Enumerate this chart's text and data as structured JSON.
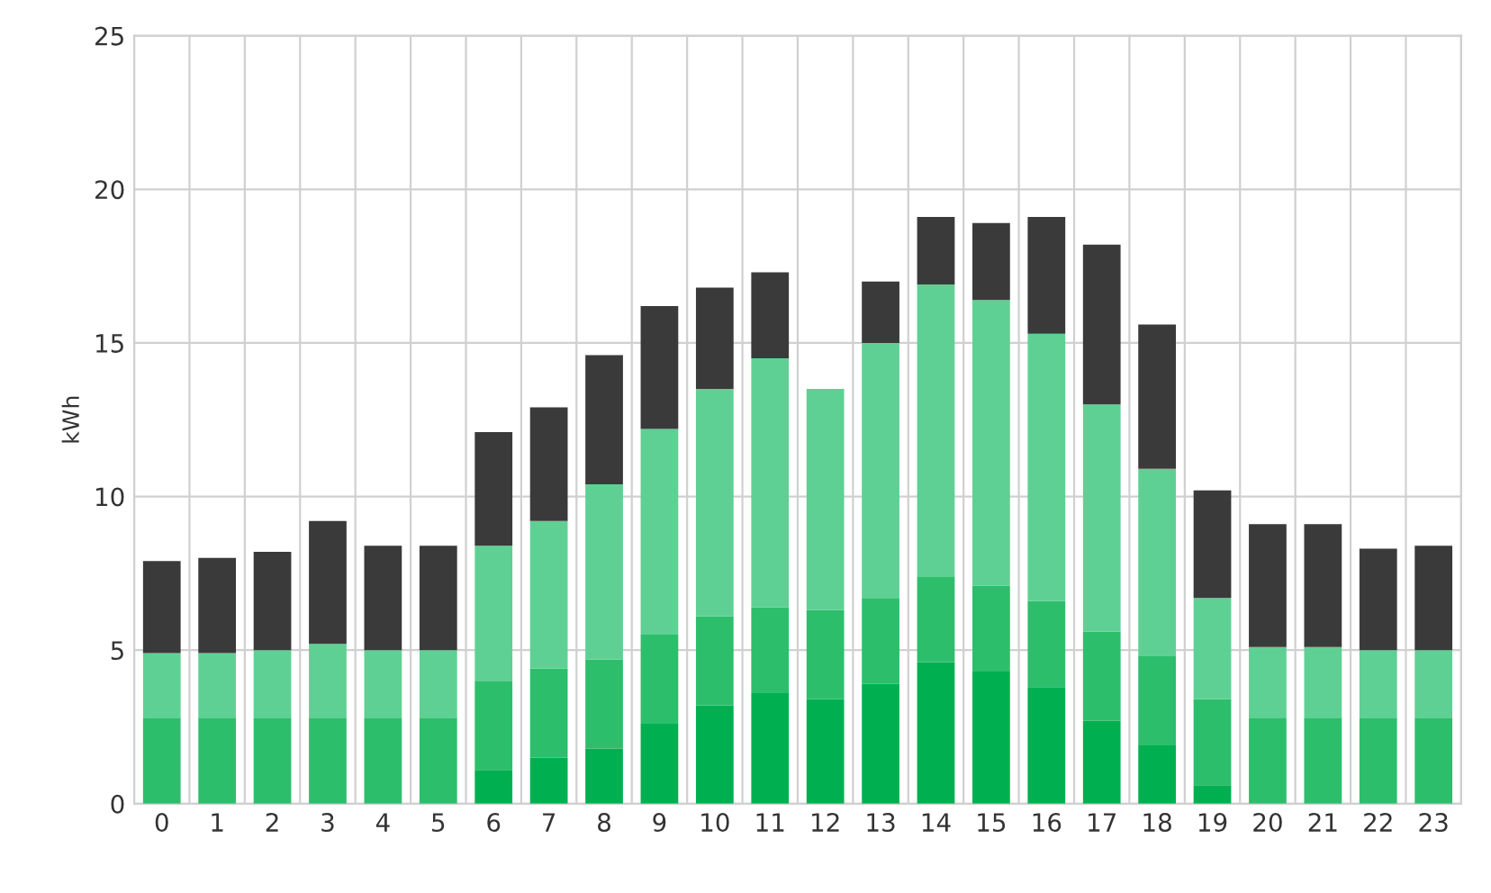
{
  "chart_data": {
    "type": "bar",
    "stacked": true,
    "ylabel": "kWh",
    "categories": [
      "0",
      "1",
      "2",
      "3",
      "4",
      "5",
      "6",
      "7",
      "8",
      "9",
      "10",
      "11",
      "12",
      "13",
      "14",
      "15",
      "16",
      "17",
      "18",
      "19",
      "20",
      "21",
      "22",
      "23"
    ],
    "series": [
      {
        "color": "#00b050",
        "values": [
          0,
          0,
          0,
          0,
          0,
          0,
          1.1,
          1.5,
          1.8,
          2.6,
          3.2,
          3.6,
          3.4,
          3.9,
          4.6,
          4.3,
          3.8,
          2.7,
          1.9,
          0.6,
          0,
          0,
          0,
          0
        ]
      },
      {
        "color": "#2dbe6c",
        "values": [
          2.8,
          2.8,
          2.8,
          2.8,
          2.8,
          2.8,
          2.9,
          2.9,
          2.9,
          2.9,
          2.9,
          2.8,
          2.9,
          2.8,
          2.8,
          2.8,
          2.8,
          2.9,
          2.9,
          2.8,
          2.8,
          2.8,
          2.8,
          2.8
        ]
      },
      {
        "color": "#5fd094",
        "values": [
          2.1,
          2.1,
          2.2,
          2.4,
          2.2,
          2.2,
          4.4,
          4.8,
          5.7,
          6.7,
          7.4,
          8.1,
          7.2,
          8.3,
          9.5,
          9.3,
          8.7,
          7.4,
          6.1,
          3.3,
          2.3,
          2.3,
          2.2,
          2.2
        ]
      },
      {
        "color": "#3a3a3a",
        "values": [
          3.0,
          3.1,
          3.2,
          4.0,
          3.4,
          3.4,
          3.7,
          3.7,
          4.2,
          4.0,
          3.3,
          2.8,
          0,
          2.0,
          2.2,
          2.5,
          3.8,
          5.2,
          4.7,
          3.5,
          4.0,
          4.0,
          3.3,
          3.4
        ]
      }
    ],
    "ylim": [
      0,
      25
    ],
    "yticks": [
      0,
      5,
      10,
      15,
      20,
      25
    ],
    "grid": true
  }
}
